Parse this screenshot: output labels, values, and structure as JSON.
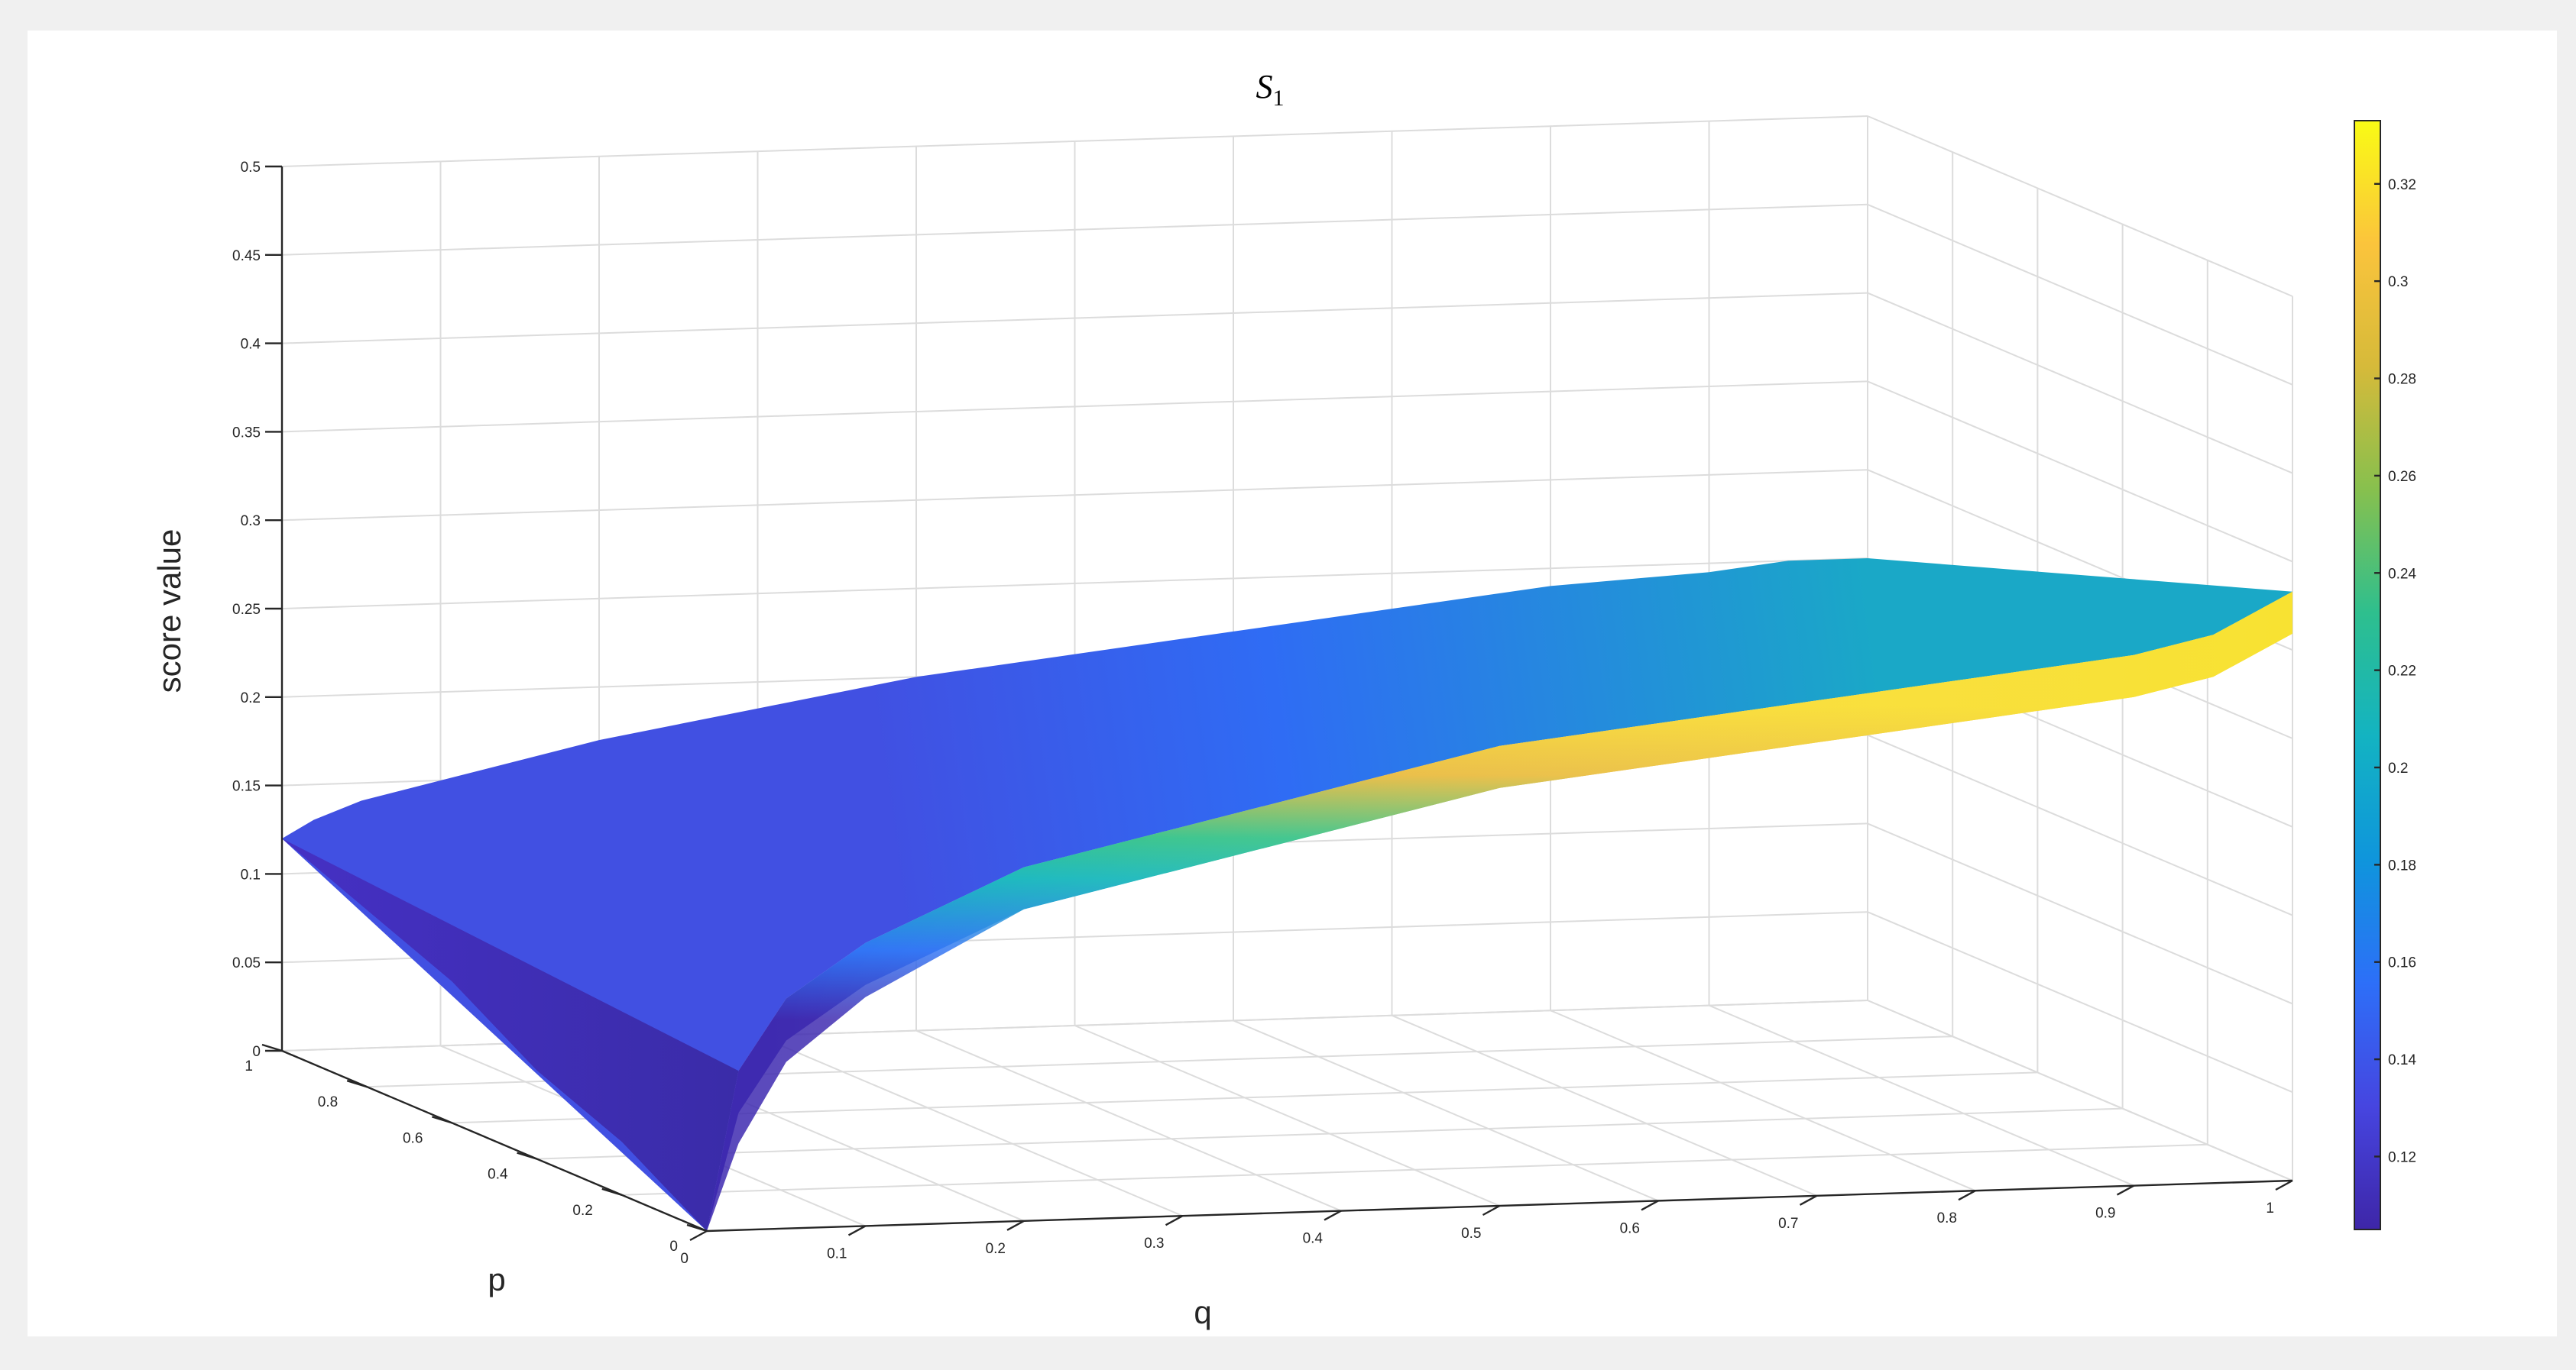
{
  "chart_data": {
    "type": "surface",
    "title": "S",
    "title_subscript": "1",
    "xlabel": "q",
    "ylabel": "p",
    "zlabel": "score value",
    "xlim": [
      0,
      1
    ],
    "ylim": [
      0,
      1
    ],
    "zlim": [
      0,
      0.5
    ],
    "x_ticks": [
      "0",
      "0.1",
      "0.2",
      "0.3",
      "0.4",
      "0.5",
      "0.6",
      "0.7",
      "0.8",
      "0.9",
      "1"
    ],
    "y_ticks": [
      "0",
      "0.2",
      "0.4",
      "0.6",
      "0.8",
      "1"
    ],
    "z_ticks": [
      "0",
      "0.05",
      "0.1",
      "0.15",
      "0.2",
      "0.25",
      "0.3",
      "0.35",
      "0.4",
      "0.45",
      "0.5"
    ],
    "grid": true,
    "colormap": "parula",
    "colormap_stops": [
      "#3e26a8",
      "#4645e0",
      "#2d6ff8",
      "#0f95dc",
      "#13b3c2",
      "#2ebf8e",
      "#87c04e",
      "#d6ba3a",
      "#fbc43c",
      "#f9fb15"
    ],
    "colorbar": {
      "location": "right",
      "range": [
        0.105,
        0.333
      ],
      "ticks": [
        "0.12",
        "0.14",
        "0.16",
        "0.18",
        "0.2",
        "0.22",
        "0.24",
        "0.26",
        "0.28",
        "0.3",
        "0.32"
      ]
    },
    "surface_samples": {
      "q": [
        0.0,
        0.02,
        0.05,
        0.1,
        0.2,
        0.3,
        0.4,
        0.5,
        0.6,
        0.7,
        0.8,
        0.9,
        0.95,
        1.0
      ],
      "p_at_q0": [
        1.0,
        0.9,
        0.8,
        0.6,
        0.4,
        0.2,
        0.1,
        0.0
      ],
      "score_at_q0": [
        0.12,
        0.11,
        0.1,
        0.08,
        0.05,
        0.03,
        0.015,
        0.0
      ],
      "score_at_p1": [
        0.12,
        0.13,
        0.14,
        0.15,
        0.17,
        0.185,
        0.2,
        0.21,
        0.22,
        0.23,
        0.24,
        0.245,
        0.25,
        0.25
      ],
      "score_at_p0": [
        0.0,
        0.09,
        0.13,
        0.16,
        0.2,
        0.22,
        0.24,
        0.26,
        0.27,
        0.28,
        0.29,
        0.3,
        0.31,
        0.333
      ]
    }
  }
}
